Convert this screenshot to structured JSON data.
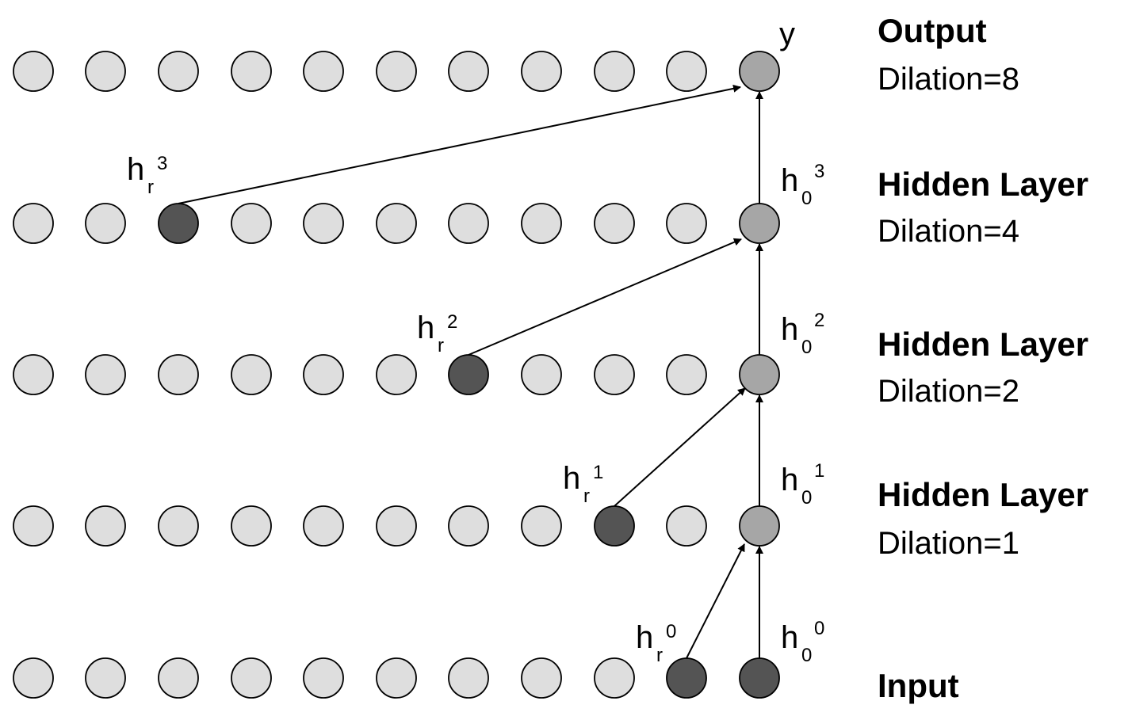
{
  "layers": [
    {
      "name": "Output",
      "dilation": "Dilation=8"
    },
    {
      "name": "Hidden Layer",
      "dilation": "Dilation=4"
    },
    {
      "name": "Hidden Layer",
      "dilation": "Dilation=2"
    },
    {
      "name": "Hidden Layer",
      "dilation": "Dilation=1"
    },
    {
      "name": "Input",
      "dilation": ""
    }
  ],
  "node_labels": {
    "output": "y",
    "h_r": [
      {
        "base": "h",
        "sub": "r",
        "sup": "3"
      },
      {
        "base": "h",
        "sub": "r",
        "sup": "2"
      },
      {
        "base": "h",
        "sub": "r",
        "sup": "1"
      },
      {
        "base": "h",
        "sub": "r",
        "sup": "0"
      }
    ],
    "h_0": [
      {
        "base": "h",
        "sub": "0",
        "sup": "3"
      },
      {
        "base": "h",
        "sub": "0",
        "sup": "2"
      },
      {
        "base": "h",
        "sub": "0",
        "sup": "1"
      },
      {
        "base": "h",
        "sub": "0",
        "sup": "0"
      }
    ]
  },
  "grid": {
    "rows": 5,
    "nodes_per_row": 11
  },
  "colors": {
    "node_default": "#dedede",
    "node_current": "#a6a6a6",
    "node_receptive": "#545454",
    "node_outline": "#000000",
    "arrow": "#000000"
  }
}
